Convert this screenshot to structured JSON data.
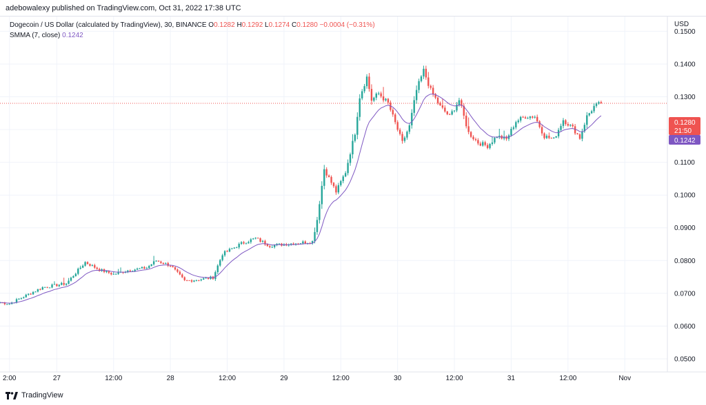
{
  "header": {
    "publisher_text": "adebowalexy published on TradingView.com, Oct 31, 2022 17:38 UTC"
  },
  "legend": {
    "symbol_title": "Dogecoin / US Dollar (calculated by TradingView), 30, BINANCE",
    "open_label": "O",
    "open_value": "0.1282",
    "high_label": "H",
    "high_value": "0.1292",
    "low_label": "L",
    "low_value": "0.1274",
    "close_label": "C",
    "close_value": "0.1280",
    "change_text": "−0.0004 (−0.31%)",
    "indicator_name": "SMMA (7, close)",
    "indicator_value": "0.1242"
  },
  "price_badges": {
    "last_price": "0.1280",
    "countdown": "21:50",
    "smma_price": "0.1242"
  },
  "footer": {
    "brand": "TradingView"
  },
  "colors": {
    "up": "#26a69a",
    "down": "#ef5350",
    "smma": "#7e57c2",
    "grid": "#f0f3fa"
  },
  "chart_data": {
    "type": "candlestick",
    "currency_label": "USD",
    "ylim": [
      0.046,
      0.1545
    ],
    "y_ticks": [
      0.05,
      0.06,
      0.07,
      0.08,
      0.09,
      0.1,
      0.11,
      0.12,
      0.13,
      0.14,
      0.15
    ],
    "y_tick_labels": [
      "0.0500",
      "0.0600",
      "0.0700",
      "0.0800",
      "0.0900",
      "0.1000",
      "0.1100",
      "0.1200",
      "0.1300",
      "0.1400",
      "0.1500"
    ],
    "x_ticks": [
      {
        "label": "2:00",
        "hours": 2
      },
      {
        "label": "27",
        "hours": 12
      },
      {
        "label": "12:00",
        "hours": 24
      },
      {
        "label": "28",
        "hours": 36
      },
      {
        "label": "12:00",
        "hours": 48
      },
      {
        "label": "29",
        "hours": 60
      },
      {
        "label": "12:00",
        "hours": 72
      },
      {
        "label": "30",
        "hours": 84
      },
      {
        "label": "12:00",
        "hours": 96
      },
      {
        "label": "31",
        "hours": 108
      },
      {
        "label": "12:00",
        "hours": 120
      },
      {
        "label": "Nov",
        "hours": 132
      }
    ],
    "x_range_hours": [
      0,
      141
    ],
    "last_price": 0.128,
    "smma_last": 0.1242,
    "anchors": [
      {
        "h": 0,
        "p": 0.0672
      },
      {
        "h": 2,
        "p": 0.0668
      },
      {
        "h": 5,
        "p": 0.069
      },
      {
        "h": 9,
        "p": 0.0718
      },
      {
        "h": 14,
        "p": 0.073
      },
      {
        "h": 18,
        "p": 0.0795
      },
      {
        "h": 21,
        "p": 0.0772
      },
      {
        "h": 24,
        "p": 0.0758
      },
      {
        "h": 27,
        "p": 0.077
      },
      {
        "h": 31,
        "p": 0.0778
      },
      {
        "h": 33,
        "p": 0.08
      },
      {
        "h": 36,
        "p": 0.0785
      },
      {
        "h": 39,
        "p": 0.0738
      },
      {
        "h": 42,
        "p": 0.0742
      },
      {
        "h": 45,
        "p": 0.0748
      },
      {
        "h": 47,
        "p": 0.082
      },
      {
        "h": 51,
        "p": 0.0852
      },
      {
        "h": 54,
        "p": 0.0868
      },
      {
        "h": 57,
        "p": 0.0845
      },
      {
        "h": 60,
        "p": 0.085
      },
      {
        "h": 66,
        "p": 0.0858
      },
      {
        "h": 67,
        "p": 0.0925
      },
      {
        "h": 68.5,
        "p": 0.108
      },
      {
        "h": 71,
        "p": 0.101
      },
      {
        "h": 73,
        "p": 0.107
      },
      {
        "h": 75,
        "p": 0.119
      },
      {
        "h": 76,
        "p": 0.13
      },
      {
        "h": 77.5,
        "p": 0.136
      },
      {
        "h": 78.5,
        "p": 0.129
      },
      {
        "h": 80,
        "p": 0.131
      },
      {
        "h": 82,
        "p": 0.128
      },
      {
        "h": 84,
        "p": 0.12
      },
      {
        "h": 85,
        "p": 0.116
      },
      {
        "h": 86.5,
        "p": 0.121
      },
      {
        "h": 88,
        "p": 0.132
      },
      {
        "h": 89.5,
        "p": 0.138
      },
      {
        "h": 91,
        "p": 0.132
      },
      {
        "h": 93,
        "p": 0.127
      },
      {
        "h": 95,
        "p": 0.124
      },
      {
        "h": 97,
        "p": 0.129
      },
      {
        "h": 99,
        "p": 0.119
      },
      {
        "h": 101,
        "p": 0.116
      },
      {
        "h": 103,
        "p": 0.115
      },
      {
        "h": 105,
        "p": 0.118
      },
      {
        "h": 107,
        "p": 0.117
      },
      {
        "h": 109,
        "p": 0.1225
      },
      {
        "h": 111,
        "p": 0.124
      },
      {
        "h": 113,
        "p": 0.124
      },
      {
        "h": 115,
        "p": 0.118
      },
      {
        "h": 117,
        "p": 0.117
      },
      {
        "h": 119,
        "p": 0.123
      },
      {
        "h": 121,
        "p": 0.1205
      },
      {
        "h": 122.5,
        "p": 0.1175
      },
      {
        "h": 124,
        "p": 0.124
      },
      {
        "h": 125.5,
        "p": 0.127
      },
      {
        "h": 127,
        "p": 0.128
      }
    ]
  }
}
